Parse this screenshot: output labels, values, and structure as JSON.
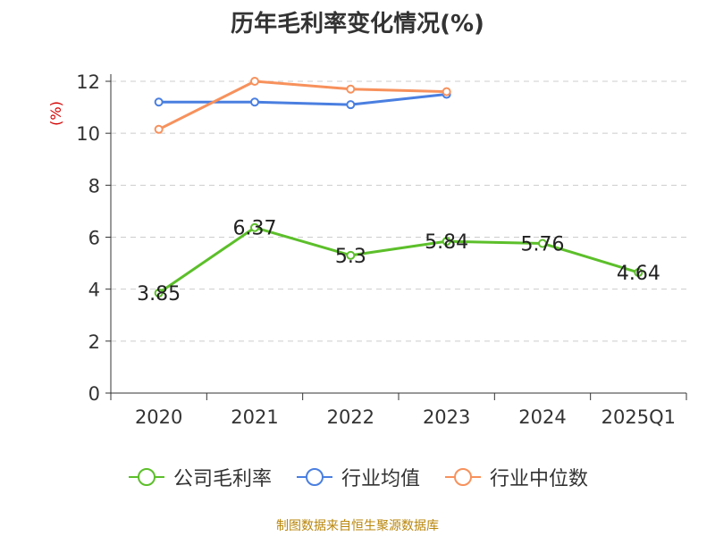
{
  "chart_data": {
    "type": "line",
    "title": "历年毛利率变化情况(%)",
    "ylabel": "(%)",
    "xlabel": "",
    "categories": [
      "2020",
      "2021",
      "2022",
      "2023",
      "2024",
      "2025Q1"
    ],
    "ylim": [
      0,
      12
    ],
    "yticks": [
      0,
      2,
      4,
      6,
      8,
      10,
      12
    ],
    "grid": true,
    "legend_position": "bottom",
    "series": [
      {
        "name": "公司毛利率",
        "color": "#5cbf2a",
        "values": [
          3.85,
          6.37,
          5.3,
          5.84,
          5.76,
          4.64
        ],
        "labels": [
          "3.85",
          "6.37",
          "5.3",
          "5.84",
          "5.76",
          "4.64"
        ]
      },
      {
        "name": "行业均值",
        "color": "#4a7fe0",
        "values": [
          11.2,
          11.2,
          11.1,
          11.5,
          null,
          null
        ]
      },
      {
        "name": "行业中位数",
        "color": "#f7915c",
        "values": [
          10.15,
          12.0,
          11.7,
          11.6,
          null,
          null
        ]
      }
    ]
  },
  "source": "制图数据来自恒生聚源数据库"
}
